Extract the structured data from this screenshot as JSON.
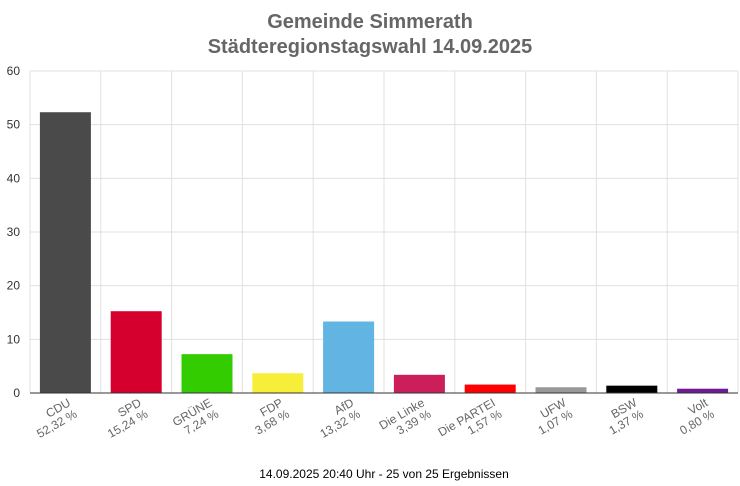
{
  "chart_data": {
    "type": "bar",
    "title": "Gemeinde Simmerath",
    "subtitle": "Städteregionstagswahl 14.09.2025",
    "categories": [
      "CDU",
      "SPD",
      "GRÜNE",
      "FDP",
      "AfD",
      "Die Linke",
      "Die PARTEI",
      "UFW",
      "BSW",
      "Volt"
    ],
    "values": [
      52.32,
      15.24,
      7.24,
      3.68,
      13.32,
      3.39,
      1.57,
      1.07,
      1.37,
      0.8
    ],
    "value_labels": [
      "52,32 %",
      "15,24 %",
      "7,24 %",
      "3,68 %",
      "13,32 %",
      "3,39 %",
      "1,57 %",
      "1,07 %",
      "1,37 %",
      "0,80 %"
    ],
    "colors": [
      "#4a4a4a",
      "#d6002f",
      "#33cc00",
      "#f7ee3a",
      "#62b4e2",
      "#cc1e5a",
      "#ff0000",
      "#999999",
      "#000000",
      "#6f1a96"
    ],
    "yticks": [
      0,
      10,
      20,
      30,
      40,
      50,
      60
    ],
    "ylim": [
      0,
      60
    ],
    "grid": true,
    "legend": "none",
    "xlabel": "",
    "ylabel": ""
  },
  "footer": "14.09.2025 20:40 Uhr - 25 von 25 Ergebnissen"
}
